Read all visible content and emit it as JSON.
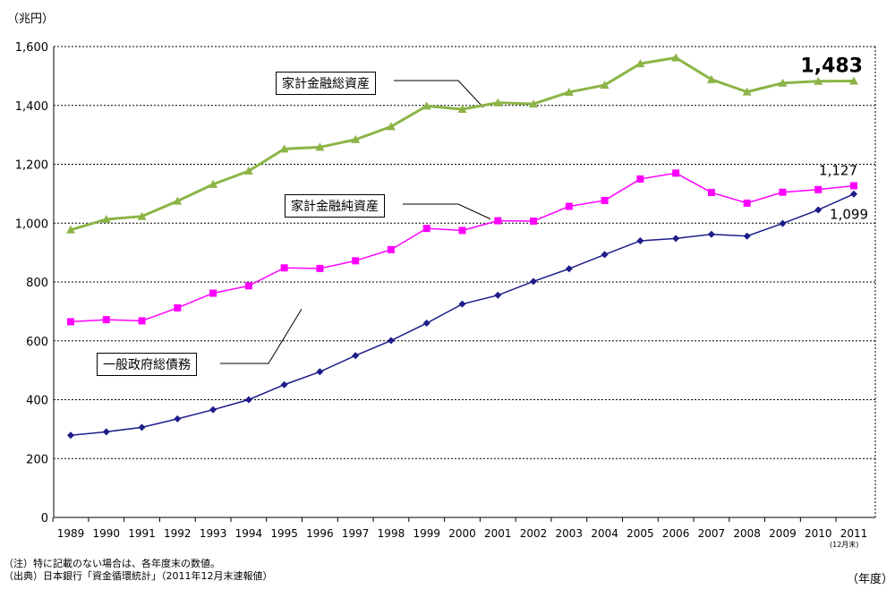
{
  "chart_data": {
    "type": "line",
    "title": "",
    "ylabel": "（兆円）",
    "xlabel": "（年度）",
    "ylim": [
      0,
      1600
    ],
    "yticks": [
      0,
      200,
      400,
      600,
      800,
      1000,
      1200,
      1400,
      1600
    ],
    "ytick_labels": [
      "0",
      "200",
      "400",
      "600",
      "800",
      "1,000",
      "1,200",
      "1,400",
      "1,600"
    ],
    "grid": "horizontal-dotted",
    "categories": [
      "1989",
      "1990",
      "1991",
      "1992",
      "1993",
      "1994",
      "1995",
      "1996",
      "1997",
      "1998",
      "1999",
      "2000",
      "2001",
      "2002",
      "2003",
      "2004",
      "2005",
      "2006",
      "2007",
      "2008",
      "2009",
      "2010",
      "2011"
    ],
    "last_category_note": "(12月末)",
    "series": [
      {
        "name": "家計金融総資産",
        "color": "#8cb447",
        "marker": "triangle",
        "values": [
          977,
          1013,
          1023,
          1075,
          1132,
          1177,
          1252,
          1258,
          1284,
          1328,
          1398,
          1387,
          1409,
          1405,
          1445,
          1469,
          1542,
          1562,
          1488,
          1446,
          1476,
          1482,
          1483
        ],
        "end_label": "1,483"
      },
      {
        "name": "家計金融純資産",
        "color": "#ff00ff",
        "marker": "square",
        "values": [
          665,
          672,
          668,
          712,
          762,
          787,
          848,
          846,
          872,
          910,
          982,
          975,
          1008,
          1007,
          1057,
          1077,
          1150,
          1170,
          1104,
          1068,
          1105,
          1114,
          1127
        ],
        "end_label": "1,127"
      },
      {
        "name": "一般政府総債務",
        "color": "#1c1c8a",
        "marker": "diamond",
        "values": [
          279,
          291,
          306,
          335,
          366,
          400,
          451,
          495,
          550,
          601,
          660,
          725,
          755,
          802,
          845,
          893,
          940,
          948,
          962,
          956,
          999,
          1045,
          1099
        ],
        "end_label": "1,099"
      }
    ]
  },
  "notes": {
    "line1": "（注）特に記載のない場合は、各年度末の数値。",
    "line2": "（出典）日本銀行「資金循環統計」（2011年12月末速報値）"
  }
}
